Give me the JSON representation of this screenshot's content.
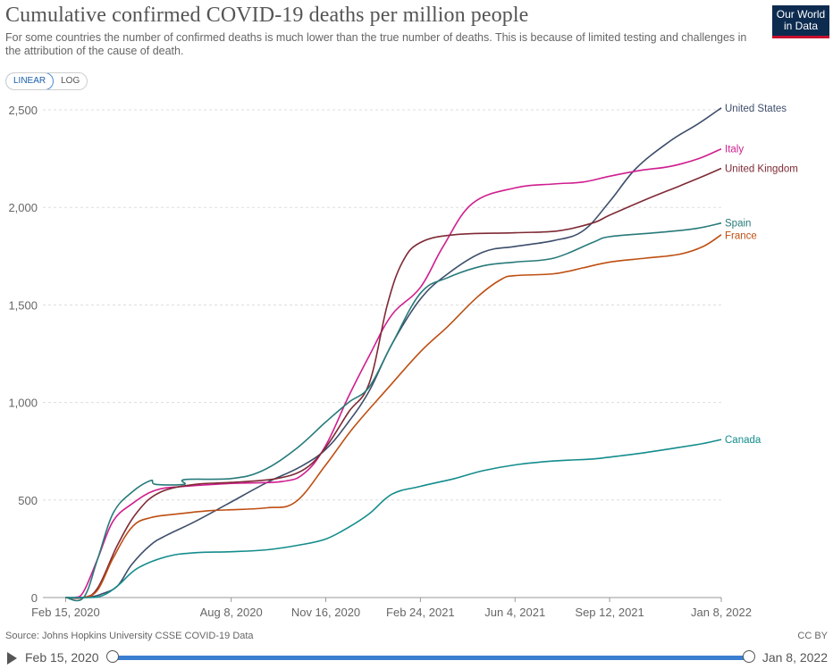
{
  "header": {
    "title": "Cumulative confirmed COVID-19 deaths per million people",
    "subtitle": "For some countries the number of confirmed deaths is much lower than the true number of deaths. This is because of limited testing and challenges in the attribution of the cause of death.",
    "logo_line1": "Our World",
    "logo_line2": "in Data"
  },
  "scale_toggle": {
    "linear_label": "LINEAR",
    "log_label": "LOG",
    "selected": "LINEAR"
  },
  "footer": {
    "source": "Source: Johns Hopkins University CSSE COVID-19 Data",
    "license": "CC BY"
  },
  "timeline": {
    "start_label": "Feb 15, 2020",
    "end_label": "Jan 8, 2022"
  },
  "colors": {
    "United States": "#3d4e6b",
    "Italy": "#cf1e8f",
    "United Kingdom": "#7f2a35",
    "Spain": "#287a7a",
    "France": "#be4e12",
    "Canada": "#148c8c",
    "grid": "#dddddd",
    "axis": "#666666"
  },
  "chart_data": {
    "type": "line",
    "x_start": "2020-01-22",
    "x_end": "2022-01-08",
    "xlim": [
      "2020-01-22",
      "2022-01-08"
    ],
    "ylim": [
      0,
      2500
    ],
    "yticks": [
      0,
      500,
      1000,
      1500,
      2000,
      2500
    ],
    "ytick_labels": [
      "0",
      "500",
      "1,000",
      "1,500",
      "2,000",
      "2,500"
    ],
    "xticks": [
      {
        "date": "2020-02-15",
        "label": "Feb 15, 2020"
      },
      {
        "date": "2020-08-08",
        "label": "Aug 8, 2020"
      },
      {
        "date": "2020-11-16",
        "label": "Nov 16, 2020"
      },
      {
        "date": "2021-02-24",
        "label": "Feb 24, 2021"
      },
      {
        "date": "2021-06-04",
        "label": "Jun 4, 2021"
      },
      {
        "date": "2021-09-12",
        "label": "Sep 12, 2021"
      },
      {
        "date": "2022-01-08",
        "label": "Jan 8, 2022"
      }
    ],
    "grid": true,
    "legend": "end-labels",
    "series": [
      {
        "name": "United States",
        "points": [
          [
            "2020-02-15",
            0
          ],
          [
            "2020-03-10",
            2
          ],
          [
            "2020-03-25",
            20
          ],
          [
            "2020-04-10",
            60
          ],
          [
            "2020-04-25",
            170
          ],
          [
            "2020-05-15",
            270
          ],
          [
            "2020-06-01",
            320
          ],
          [
            "2020-07-01",
            390
          ],
          [
            "2020-08-08",
            490
          ],
          [
            "2020-09-15",
            590
          ],
          [
            "2020-10-20",
            670
          ],
          [
            "2020-11-16",
            760
          ],
          [
            "2020-12-10",
            900
          ],
          [
            "2021-01-01",
            1060
          ],
          [
            "2021-01-25",
            1300
          ],
          [
            "2021-02-24",
            1530
          ],
          [
            "2021-03-25",
            1660
          ],
          [
            "2021-05-01",
            1770
          ],
          [
            "2021-06-04",
            1800
          ],
          [
            "2021-07-15",
            1830
          ],
          [
            "2021-08-15",
            1880
          ],
          [
            "2021-09-12",
            2030
          ],
          [
            "2021-10-10",
            2200
          ],
          [
            "2021-11-15",
            2340
          ],
          [
            "2021-12-15",
            2430
          ],
          [
            "2022-01-08",
            2510
          ]
        ]
      },
      {
        "name": "Italy",
        "points": [
          [
            "2020-02-15",
            0
          ],
          [
            "2020-02-25",
            0
          ],
          [
            "2020-03-05",
            30
          ],
          [
            "2020-03-20",
            200
          ],
          [
            "2020-04-05",
            390
          ],
          [
            "2020-04-25",
            480
          ],
          [
            "2020-05-20",
            550
          ],
          [
            "2020-06-20",
            570
          ],
          [
            "2020-08-08",
            585
          ],
          [
            "2020-10-01",
            595
          ],
          [
            "2020-10-25",
            640
          ],
          [
            "2020-11-16",
            780
          ],
          [
            "2020-12-10",
            1030
          ],
          [
            "2021-01-01",
            1240
          ],
          [
            "2021-01-25",
            1450
          ],
          [
            "2021-02-24",
            1590
          ],
          [
            "2021-03-20",
            1800
          ],
          [
            "2021-04-20",
            2020
          ],
          [
            "2021-06-04",
            2100
          ],
          [
            "2021-07-15",
            2120
          ],
          [
            "2021-08-15",
            2130
          ],
          [
            "2021-09-12",
            2160
          ],
          [
            "2021-10-15",
            2190
          ],
          [
            "2021-11-15",
            2210
          ],
          [
            "2021-12-15",
            2250
          ],
          [
            "2022-01-08",
            2300
          ]
        ]
      },
      {
        "name": "United Kingdom",
        "points": [
          [
            "2020-02-15",
            0
          ],
          [
            "2020-03-05",
            0
          ],
          [
            "2020-03-20",
            50
          ],
          [
            "2020-04-10",
            270
          ],
          [
            "2020-05-01",
            440
          ],
          [
            "2020-05-25",
            540
          ],
          [
            "2020-07-01",
            580
          ],
          [
            "2020-08-08",
            590
          ],
          [
            "2020-09-25",
            610
          ],
          [
            "2020-10-25",
            660
          ],
          [
            "2020-11-16",
            770
          ],
          [
            "2020-12-10",
            950
          ],
          [
            "2021-01-01",
            1100
          ],
          [
            "2021-01-20",
            1500
          ],
          [
            "2021-02-05",
            1720
          ],
          [
            "2021-02-24",
            1820
          ],
          [
            "2021-04-01",
            1860
          ],
          [
            "2021-06-04",
            1870
          ],
          [
            "2021-07-20",
            1880
          ],
          [
            "2021-08-25",
            1920
          ],
          [
            "2021-09-12",
            1960
          ],
          [
            "2021-10-20",
            2040
          ],
          [
            "2021-11-25",
            2110
          ],
          [
            "2021-12-20",
            2160
          ],
          [
            "2022-01-08",
            2200
          ]
        ]
      },
      {
        "name": "Spain",
        "points": [
          [
            "2020-02-15",
            0
          ],
          [
            "2020-03-05",
            0
          ],
          [
            "2020-03-20",
            200
          ],
          [
            "2020-04-05",
            430
          ],
          [
            "2020-04-25",
            540
          ],
          [
            "2020-05-15",
            600
          ],
          [
            "2020-05-20",
            580
          ],
          [
            "2020-06-19",
            580
          ],
          [
            "2020-06-20",
            605
          ],
          [
            "2020-08-08",
            610
          ],
          [
            "2020-09-10",
            650
          ],
          [
            "2020-10-15",
            760
          ],
          [
            "2020-11-16",
            900
          ],
          [
            "2020-12-10",
            1000
          ],
          [
            "2021-01-01",
            1080
          ],
          [
            "2021-01-25",
            1300
          ],
          [
            "2021-02-24",
            1560
          ],
          [
            "2021-03-25",
            1640
          ],
          [
            "2021-05-01",
            1700
          ],
          [
            "2021-06-04",
            1720
          ],
          [
            "2021-07-15",
            1740
          ],
          [
            "2021-08-25",
            1820
          ],
          [
            "2021-09-12",
            1850
          ],
          [
            "2021-10-30",
            1870
          ],
          [
            "2021-12-10",
            1890
          ],
          [
            "2022-01-08",
            1920
          ]
        ]
      },
      {
        "name": "France",
        "points": [
          [
            "2020-02-15",
            0
          ],
          [
            "2020-03-05",
            0
          ],
          [
            "2020-03-20",
            40
          ],
          [
            "2020-04-05",
            200
          ],
          [
            "2020-04-25",
            360
          ],
          [
            "2020-05-15",
            410
          ],
          [
            "2020-06-15",
            430
          ],
          [
            "2020-07-15",
            445
          ],
          [
            "2020-08-08",
            450
          ],
          [
            "2020-09-15",
            460
          ],
          [
            "2020-10-15",
            490
          ],
          [
            "2020-11-16",
            680
          ],
          [
            "2020-12-15",
            870
          ],
          [
            "2021-01-20",
            1070
          ],
          [
            "2021-02-24",
            1260
          ],
          [
            "2021-03-25",
            1390
          ],
          [
            "2021-04-25",
            1540
          ],
          [
            "2021-05-20",
            1630
          ],
          [
            "2021-06-04",
            1650
          ],
          [
            "2021-07-15",
            1660
          ],
          [
            "2021-08-15",
            1690
          ],
          [
            "2021-09-12",
            1720
          ],
          [
            "2021-10-20",
            1740
          ],
          [
            "2021-11-25",
            1760
          ],
          [
            "2021-12-20",
            1800
          ],
          [
            "2022-01-08",
            1860
          ]
        ]
      },
      {
        "name": "Canada",
        "points": [
          [
            "2020-02-15",
            0
          ],
          [
            "2020-03-10",
            0
          ],
          [
            "2020-03-25",
            10
          ],
          [
            "2020-04-10",
            60
          ],
          [
            "2020-05-01",
            150
          ],
          [
            "2020-06-01",
            210
          ],
          [
            "2020-07-01",
            230
          ],
          [
            "2020-08-08",
            235
          ],
          [
            "2020-09-15",
            245
          ],
          [
            "2020-10-20",
            270
          ],
          [
            "2020-11-16",
            300
          ],
          [
            "2020-12-10",
            360
          ],
          [
            "2021-01-01",
            430
          ],
          [
            "2021-01-25",
            530
          ],
          [
            "2021-02-24",
            570
          ],
          [
            "2021-04-01",
            610
          ],
          [
            "2021-05-01",
            650
          ],
          [
            "2021-06-04",
            680
          ],
          [
            "2021-07-15",
            700
          ],
          [
            "2021-08-25",
            710
          ],
          [
            "2021-09-12",
            720
          ],
          [
            "2021-10-15",
            740
          ],
          [
            "2021-11-25",
            770
          ],
          [
            "2021-12-20",
            790
          ],
          [
            "2022-01-08",
            810
          ]
        ]
      }
    ]
  }
}
